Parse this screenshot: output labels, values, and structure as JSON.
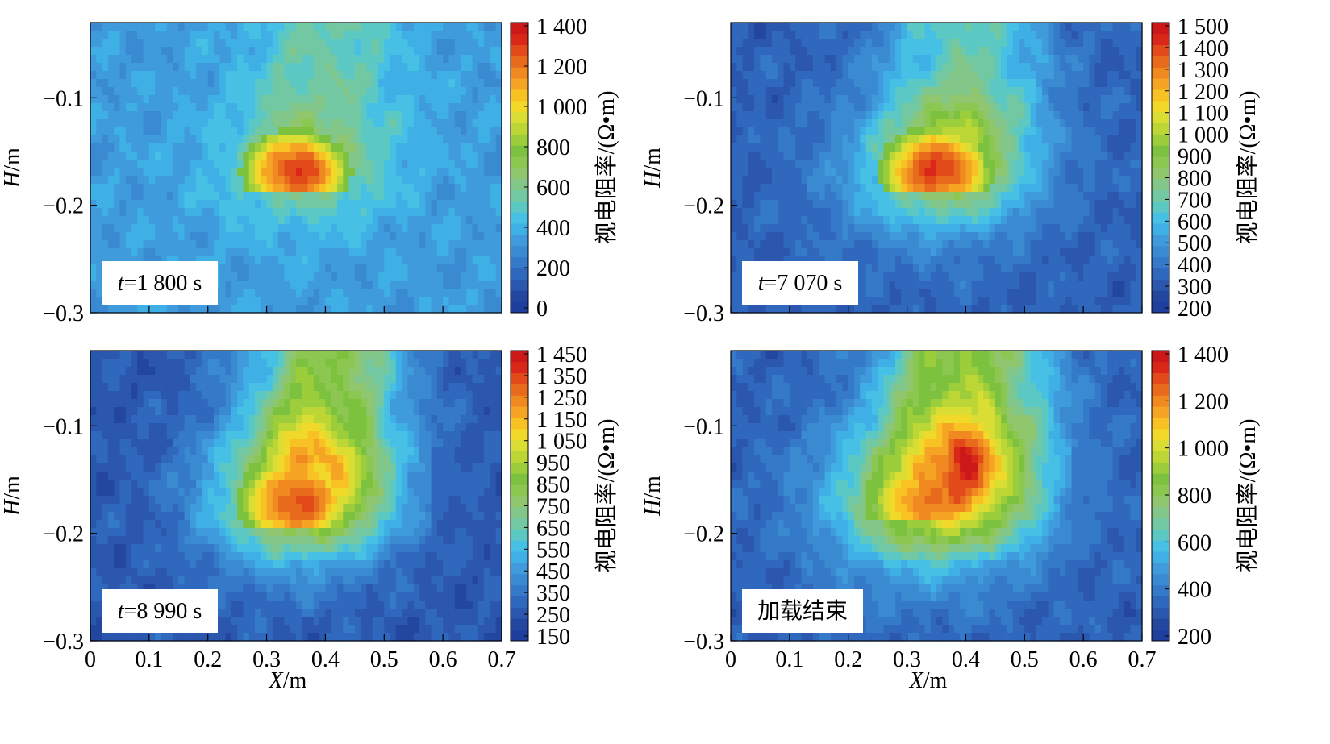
{
  "palette": [
    "#1f3f9e",
    "#23469f",
    "#2b57ae",
    "#2f68bd",
    "#3579c9",
    "#3a8ad2",
    "#3f9bdb",
    "#3fb0e6",
    "#46c0e4",
    "#5cc8c4",
    "#72c8a2",
    "#82c689",
    "#8fc66e",
    "#8cc752",
    "#7cc23e",
    "#9ccd3a",
    "#bcd636",
    "#dadd33",
    "#f1d92a",
    "#f8c225",
    "#f5a523",
    "#ef8920",
    "#e86a1d",
    "#e24a1a",
    "#d92719",
    "#cc1818"
  ],
  "charts": [
    {
      "ylabel_text": "H",
      "ylabel_unit": "/m",
      "xlabel_text": "X",
      "xlabel_unit": "/m",
      "show_xticks": false,
      "cb_label": "视电阻率/(Ω•m)",
      "time_prefix": "t",
      "time_value": "=1 800 s",
      "time_text": "",
      "field": {
        "bg": 0.25,
        "blob_cx": 0.35,
        "blob_cy": -0.168,
        "blob_w": 0.085,
        "blob_h": 0.035,
        "blob_peak": 0.92,
        "halo": 0.15,
        "plume": 0.18
      }
    },
    {
      "ylabel_text": "H",
      "ylabel_unit": "/m",
      "xlabel_text": "X",
      "xlabel_unit": "/m",
      "show_xticks": false,
      "cb_label": "视电阻率/(Ω•m)",
      "time_prefix": "t",
      "time_value": "=7 070 s",
      "time_text": "",
      "field": {
        "bg": 0.12,
        "blob_cx": 0.35,
        "blob_cy": -0.168,
        "blob_w": 0.09,
        "blob_h": 0.038,
        "blob_peak": 0.92,
        "halo": 0.35,
        "plume": 0.35
      }
    },
    {
      "ylabel_text": "H",
      "ylabel_unit": "/m",
      "xlabel_text": "X",
      "xlabel_unit": "/m",
      "show_xticks": true,
      "cb_label": "视电阻率/(Ω•m)",
      "time_prefix": "t",
      "time_value": "=8 990 s",
      "time_text": "",
      "field": {
        "bg": 0.1,
        "blob_cx": 0.35,
        "blob_cy": -0.17,
        "blob_w": 0.09,
        "blob_h": 0.04,
        "blob_peak": 0.9,
        "halo": 0.45,
        "plume": 0.55
      }
    },
    {
      "ylabel_text": "H",
      "ylabel_unit": "/m",
      "xlabel_text": "X",
      "xlabel_unit": "/m",
      "show_xticks": true,
      "cb_label": "视电阻率/(Ω•m)",
      "time_prefix": "",
      "time_value": "",
      "time_text": "加载结束",
      "field": {
        "bg": 0.12,
        "blob_cx": 0.34,
        "blob_cy": -0.168,
        "blob_w": 0.1,
        "blob_h": 0.042,
        "blob_peak": 0.85,
        "halo": 0.5,
        "plume": 0.6
      }
    }
  ],
  "chart_data": [
    {
      "type": "heatmap",
      "xlabel": "X/m",
      "ylabel": "H/m",
      "xlim": [
        0,
        0.7
      ],
      "ylim": [
        -0.3,
        -0.03
      ],
      "xticks": [],
      "yticks": [
        "−0.1",
        "−0.2",
        "−0.3"
      ],
      "ytick_values": [
        -0.1,
        -0.2,
        -0.3
      ],
      "colorbar_label": "视电阻率/(Ω•m)",
      "colorbar_range": [
        0,
        1400
      ],
      "colorbar_ticks": [
        "0",
        "200",
        "400",
        "600",
        "800",
        "1 000",
        "1 200",
        "1 400"
      ],
      "colorbar_tick_values": [
        0,
        200,
        400,
        600,
        800,
        1000,
        1200,
        1400
      ],
      "annotation": "t=1 800 s"
    },
    {
      "type": "heatmap",
      "xlabel": "X/m",
      "ylabel": "H/m",
      "xlim": [
        0,
        0.7
      ],
      "ylim": [
        -0.3,
        -0.03
      ],
      "xticks": [],
      "yticks": [
        "−0.1",
        "−0.2",
        "−0.3"
      ],
      "ytick_values": [
        -0.1,
        -0.2,
        -0.3
      ],
      "colorbar_label": "视电阻率/(Ω•m)",
      "colorbar_range": [
        150,
        1500
      ],
      "colorbar_ticks": [
        "200",
        "300",
        "400",
        "500",
        "600",
        "700",
        "800",
        "900",
        "1 000",
        "1 100",
        "1 200",
        "1 300",
        "1 400",
        "1 500"
      ],
      "colorbar_tick_values": [
        200,
        300,
        400,
        500,
        600,
        700,
        800,
        900,
        1000,
        1100,
        1200,
        1300,
        1400,
        1500
      ],
      "annotation": "t=7 070 s"
    },
    {
      "type": "heatmap",
      "xlabel": "X/m",
      "ylabel": "H/m",
      "xlim": [
        0,
        0.7
      ],
      "ylim": [
        -0.3,
        -0.03
      ],
      "xticks": [
        "0",
        "0.1",
        "0.2",
        "0.3",
        "0.4",
        "0.5",
        "0.6",
        "0.7"
      ],
      "xtick_values": [
        0,
        0.1,
        0.2,
        0.3,
        0.4,
        0.5,
        0.6,
        0.7
      ],
      "yticks": [
        "−0.1",
        "−0.2",
        "−0.3"
      ],
      "ytick_values": [
        -0.1,
        -0.2,
        -0.3
      ],
      "colorbar_label": "视电阻率/(Ω•m)",
      "colorbar_range": [
        150,
        1450
      ],
      "colorbar_ticks": [
        "150",
        "250",
        "350",
        "450",
        "550",
        "650",
        "750",
        "850",
        "950",
        "1 050",
        "1 150",
        "1 250",
        "1 350",
        "1 450"
      ],
      "colorbar_tick_values": [
        150,
        250,
        350,
        450,
        550,
        650,
        750,
        850,
        950,
        1050,
        1150,
        1250,
        1350,
        1450
      ],
      "annotation": "t=8 990 s"
    },
    {
      "type": "heatmap",
      "xlabel": "X/m",
      "ylabel": "H/m",
      "xlim": [
        0,
        0.7
      ],
      "ylim": [
        -0.3,
        -0.03
      ],
      "xticks": [
        "0",
        "0.1",
        "0.2",
        "0.3",
        "0.4",
        "0.5",
        "0.6",
        "0.7"
      ],
      "xtick_values": [
        0,
        0.1,
        0.2,
        0.3,
        0.4,
        0.5,
        0.6,
        0.7
      ],
      "yticks": [
        "−0.1",
        "−0.2",
        "−0.3"
      ],
      "ytick_values": [
        -0.1,
        -0.2,
        -0.3
      ],
      "colorbar_label": "视电阻率/(Ω•m)",
      "colorbar_range": [
        200,
        1400
      ],
      "colorbar_ticks": [
        "200",
        "400",
        "600",
        "800",
        "1 000",
        "1 200",
        "1 400"
      ],
      "colorbar_tick_values": [
        200,
        400,
        600,
        800,
        1000,
        1200,
        1400
      ],
      "annotation": "加载结束"
    }
  ]
}
